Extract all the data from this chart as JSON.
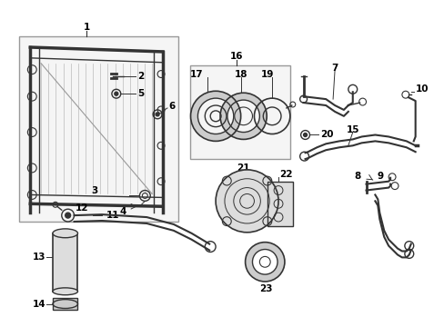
{
  "bg_color": "#ffffff",
  "line_color": "#333333",
  "text_color": "#000000",
  "fs": 7.5,
  "fig_width": 4.89,
  "fig_height": 3.6,
  "dpi": 100
}
